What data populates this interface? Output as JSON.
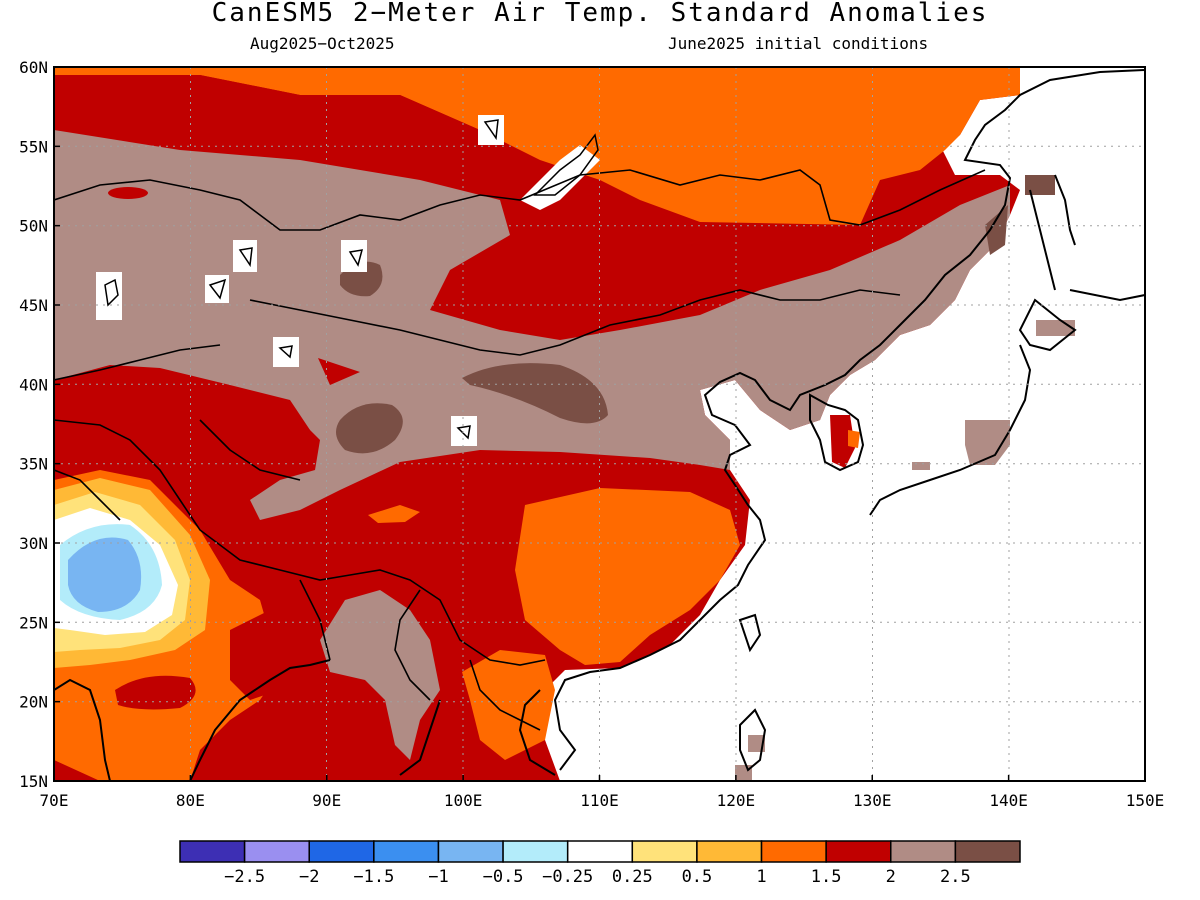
{
  "title": "CanESM5 2−Meter Air Temp. Standard Anomalies",
  "subtitle_left": "Aug2025−Oct2025",
  "subtitle_right": "June2025 initial conditions",
  "map": {
    "lon_range": [
      70,
      150
    ],
    "lat_range": [
      15,
      60
    ],
    "lon_ticks": [
      "70E",
      "80E",
      "90E",
      "100E",
      "110E",
      "120E",
      "130E",
      "140E",
      "150E"
    ],
    "lat_ticks": [
      "60N",
      "55N",
      "50N",
      "45N",
      "40N",
      "35N",
      "30N",
      "25N",
      "20N",
      "15N"
    ],
    "grid": "dotted"
  },
  "colorbar": {
    "colors": [
      "#3d2fb4",
      "#9a8ff0",
      "#1f67e6",
      "#3b8ff0",
      "#78b5f2",
      "#b3ecfa",
      "#ffffff",
      "#ffe27a",
      "#ffb936",
      "#ff6a00",
      "#c00000",
      "#b08c85",
      "#7a4f45"
    ],
    "labels": [
      "−2.5",
      "−2",
      "−1.5",
      "−1",
      "−0.5",
      "−0.25",
      "0.25",
      "0.5",
      "1",
      "1.5",
      "2",
      "2.5"
    ]
  }
}
